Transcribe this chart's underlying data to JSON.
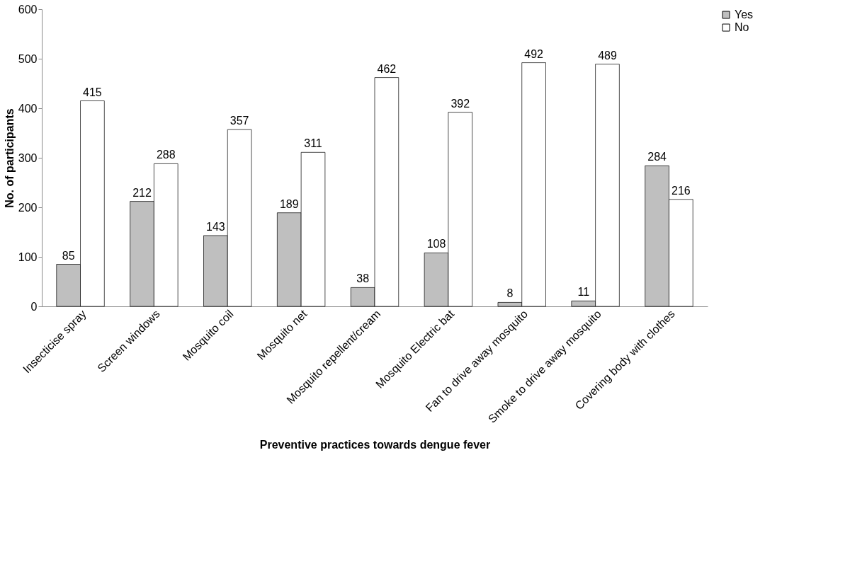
{
  "chart_data": {
    "type": "bar",
    "xlabel": "Preventive practices towards dengue fever",
    "ylabel": "No. of participants",
    "categories": [
      "Insecticise spray",
      "Screen windows",
      "Mosquito coil",
      "Mosquito net",
      "Mosquito repellent/cream",
      "Mosquito Electric bat",
      "Fan to drive away mosquito",
      "Smoke to drive away mosquito",
      "Covering body with clothes"
    ],
    "series": [
      {
        "name": "Yes",
        "color": "#bfbfbf",
        "values": [
          85,
          212,
          143,
          189,
          38,
          108,
          8,
          11,
          284
        ]
      },
      {
        "name": "No",
        "color": "#ffffff",
        "values": [
          415,
          288,
          357,
          311,
          462,
          392,
          492,
          489,
          216
        ]
      }
    ],
    "ylim": [
      0,
      600
    ],
    "yticks": [
      0,
      100,
      200,
      300,
      400,
      500,
      600
    ],
    "data_labels": true,
    "legend": "right",
    "grid": false
  }
}
